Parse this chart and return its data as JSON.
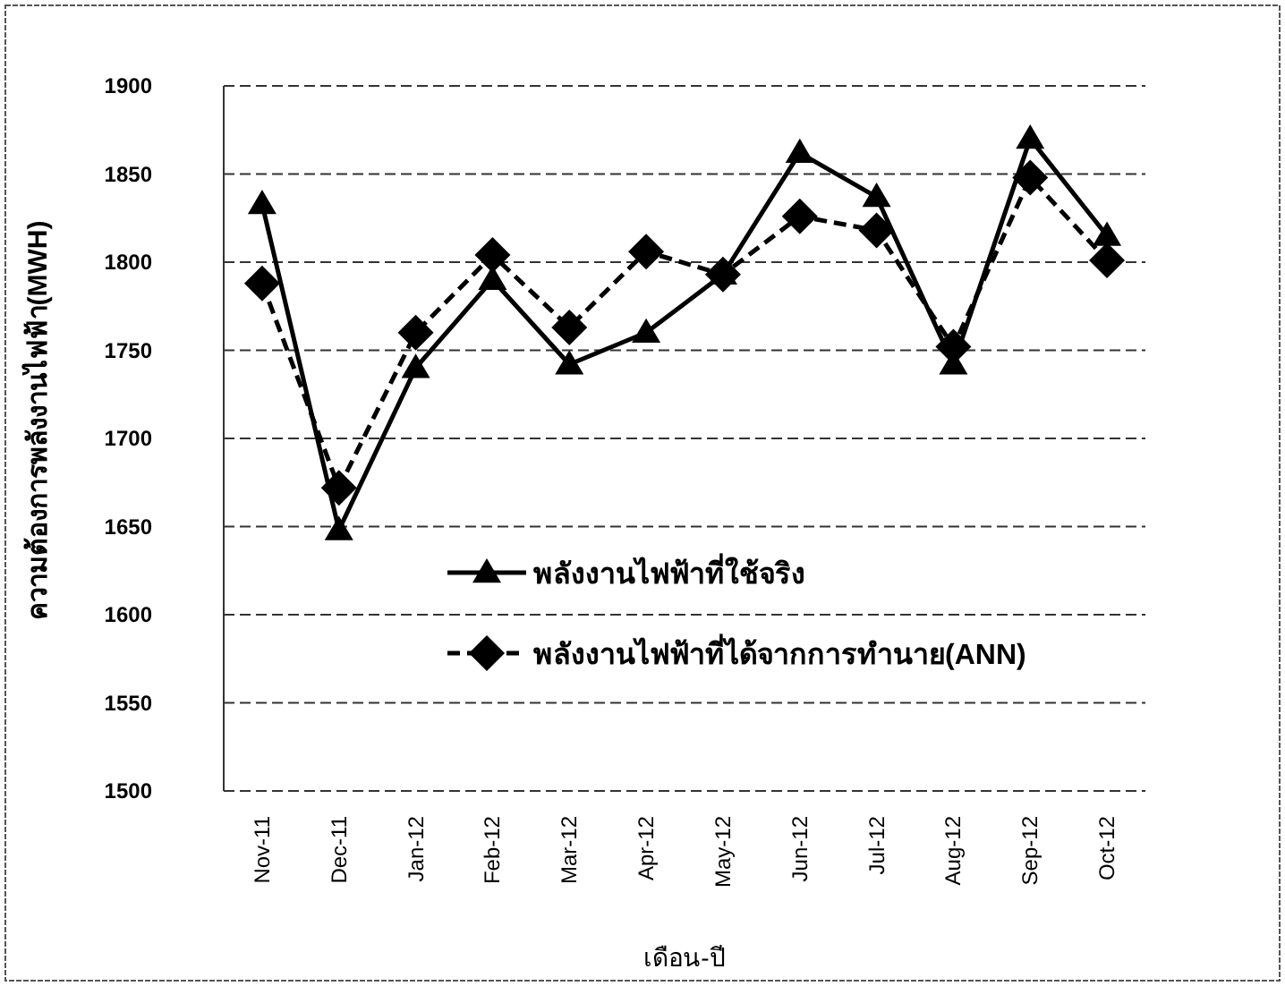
{
  "chart_data": {
    "type": "line",
    "xlabel": "เดือน-ปี",
    "ylabel": "ความต้องการพลังงานไฟฟ้า(MWH)",
    "categories": [
      "Nov-11",
      "Dec-11",
      "Jan-12",
      "Feb-12",
      "Mar-12",
      "Apr-12",
      "May-12",
      "Jun-12",
      "Jul-12",
      "Aug-12",
      "Sep-12",
      "Oct-12"
    ],
    "series": [
      {
        "name": "พลังงานไฟฟ้าที่ใช้จริง",
        "color": "#000000",
        "marker": "triangle",
        "line_style": "solid",
        "values": [
          1833,
          1648,
          1740,
          1790,
          1742,
          1760,
          1793,
          1862,
          1837,
          1742,
          1870,
          1815
        ]
      },
      {
        "name": "พลังงานไฟฟ้าที่ได้จากการทำนาย(ANN)",
        "color": "#000000",
        "marker": "diamond",
        "line_style": "dashed",
        "values": [
          1788,
          1672,
          1760,
          1804,
          1763,
          1806,
          1793,
          1826,
          1818,
          1752,
          1848,
          1801
        ]
      }
    ],
    "ylim": [
      1500,
      1900
    ],
    "yticks": [
      1500,
      1550,
      1600,
      1650,
      1700,
      1750,
      1800,
      1850,
      1900
    ],
    "grid": "y",
    "legend": "center"
  }
}
